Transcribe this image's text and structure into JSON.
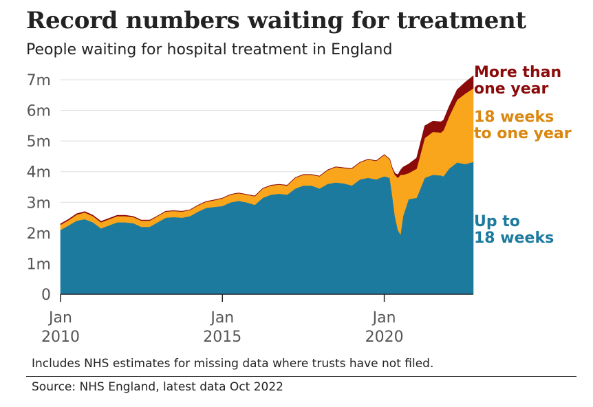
{
  "title": "Record numbers waiting for treatment",
  "subtitle": "People waiting for hospital treatment in England",
  "footnote": "Includes NHS estimates for missing data where trusts have not filed.",
  "source": "Source: NHS England, latest data Oct 2022",
  "chart_data": {
    "type": "area",
    "stacked": true,
    "grid": true,
    "x_unit": "decimal year (month start)",
    "x_range": [
      2010.0,
      2022.75
    ],
    "ylim": [
      0,
      7.5
    ],
    "y_ticks": [
      0,
      1,
      2,
      3,
      4,
      5,
      6,
      7
    ],
    "y_tick_labels": [
      "0",
      "1m",
      "2m",
      "3m",
      "4m",
      "5m",
      "6m",
      "7m"
    ],
    "x_ticks": [
      2010,
      2015,
      2020
    ],
    "x_tick_labels": [
      [
        "Jan",
        "2010"
      ],
      [
        "Jan",
        "2015"
      ],
      [
        "Jan",
        "2020"
      ]
    ],
    "series": [
      {
        "name": "Up to 18 weeks",
        "label_lines": [
          "Up to",
          "18 weeks"
        ],
        "color": "#1b7a9e",
        "label_color": "#1b7a9e",
        "points": [
          [
            2010.0,
            2.1
          ],
          [
            2010.25,
            2.25
          ],
          [
            2010.5,
            2.4
          ],
          [
            2010.75,
            2.45
          ],
          [
            2011.0,
            2.35
          ],
          [
            2011.25,
            2.15
          ],
          [
            2011.5,
            2.25
          ],
          [
            2011.75,
            2.35
          ],
          [
            2012.0,
            2.35
          ],
          [
            2012.25,
            2.32
          ],
          [
            2012.5,
            2.2
          ],
          [
            2012.75,
            2.2
          ],
          [
            2013.0,
            2.35
          ],
          [
            2013.25,
            2.5
          ],
          [
            2013.5,
            2.52
          ],
          [
            2013.75,
            2.5
          ],
          [
            2014.0,
            2.55
          ],
          [
            2014.25,
            2.7
          ],
          [
            2014.5,
            2.82
          ],
          [
            2014.75,
            2.85
          ],
          [
            2015.0,
            2.88
          ],
          [
            2015.25,
            3.0
          ],
          [
            2015.5,
            3.05
          ],
          [
            2015.75,
            3.0
          ],
          [
            2016.0,
            2.92
          ],
          [
            2016.25,
            3.15
          ],
          [
            2016.5,
            3.25
          ],
          [
            2016.75,
            3.28
          ],
          [
            2017.0,
            3.25
          ],
          [
            2017.25,
            3.45
          ],
          [
            2017.5,
            3.55
          ],
          [
            2017.75,
            3.55
          ],
          [
            2018.0,
            3.45
          ],
          [
            2018.25,
            3.6
          ],
          [
            2018.5,
            3.65
          ],
          [
            2018.75,
            3.62
          ],
          [
            2019.0,
            3.55
          ],
          [
            2019.25,
            3.75
          ],
          [
            2019.5,
            3.8
          ],
          [
            2019.75,
            3.75
          ],
          [
            2020.0,
            3.85
          ],
          [
            2020.17,
            3.8
          ],
          [
            2020.25,
            3.2
          ],
          [
            2020.33,
            2.55
          ],
          [
            2020.42,
            2.1
          ],
          [
            2020.5,
            1.95
          ],
          [
            2020.58,
            2.55
          ],
          [
            2020.75,
            3.1
          ],
          [
            2021.0,
            3.15
          ],
          [
            2021.25,
            3.8
          ],
          [
            2021.5,
            3.9
          ],
          [
            2021.75,
            3.88
          ],
          [
            2021.83,
            3.85
          ],
          [
            2022.0,
            4.1
          ],
          [
            2022.25,
            4.3
          ],
          [
            2022.5,
            4.25
          ],
          [
            2022.75,
            4.32
          ]
        ]
      },
      {
        "name": "18 weeks to one year",
        "label_lines": [
          "18 weeks",
          "to one year"
        ],
        "color": "#f9a61c",
        "label_color": "#d9870f",
        "points": [
          [
            2010.0,
            0.17
          ],
          [
            2010.25,
            0.17
          ],
          [
            2010.5,
            0.2
          ],
          [
            2010.75,
            0.22
          ],
          [
            2011.0,
            0.2
          ],
          [
            2011.25,
            0.2
          ],
          [
            2011.5,
            0.2
          ],
          [
            2011.75,
            0.2
          ],
          [
            2012.0,
            0.2
          ],
          [
            2012.25,
            0.2
          ],
          [
            2012.5,
            0.2
          ],
          [
            2012.75,
            0.2
          ],
          [
            2013.0,
            0.2
          ],
          [
            2013.25,
            0.2
          ],
          [
            2013.5,
            0.2
          ],
          [
            2013.75,
            0.2
          ],
          [
            2014.0,
            0.2
          ],
          [
            2014.25,
            0.2
          ],
          [
            2014.5,
            0.2
          ],
          [
            2014.75,
            0.22
          ],
          [
            2015.0,
            0.25
          ],
          [
            2015.25,
            0.25
          ],
          [
            2015.5,
            0.25
          ],
          [
            2015.75,
            0.25
          ],
          [
            2016.0,
            0.28
          ],
          [
            2016.25,
            0.3
          ],
          [
            2016.5,
            0.3
          ],
          [
            2016.75,
            0.3
          ],
          [
            2017.0,
            0.3
          ],
          [
            2017.25,
            0.35
          ],
          [
            2017.5,
            0.35
          ],
          [
            2017.75,
            0.35
          ],
          [
            2018.0,
            0.4
          ],
          [
            2018.25,
            0.45
          ],
          [
            2018.5,
            0.5
          ],
          [
            2018.75,
            0.5
          ],
          [
            2019.0,
            0.55
          ],
          [
            2019.25,
            0.55
          ],
          [
            2019.5,
            0.6
          ],
          [
            2019.75,
            0.6
          ],
          [
            2020.0,
            0.7
          ],
          [
            2020.17,
            0.6
          ],
          [
            2020.25,
            0.9
          ],
          [
            2020.33,
            1.35
          ],
          [
            2020.42,
            1.7
          ],
          [
            2020.5,
            1.95
          ],
          [
            2020.58,
            1.35
          ],
          [
            2020.75,
            0.85
          ],
          [
            2021.0,
            0.95
          ],
          [
            2021.25,
            1.3
          ],
          [
            2021.5,
            1.4
          ],
          [
            2021.75,
            1.4
          ],
          [
            2021.83,
            1.5
          ],
          [
            2022.0,
            1.7
          ],
          [
            2022.25,
            2.05
          ],
          [
            2022.5,
            2.3
          ],
          [
            2022.75,
            2.4
          ]
        ]
      },
      {
        "name": "More than one year",
        "label_lines": [
          "More than",
          "one year"
        ],
        "color": "#8b0a0a",
        "label_color": "#8b0a0a",
        "points": [
          [
            2010.0,
            0.03
          ],
          [
            2010.25,
            0.03
          ],
          [
            2010.5,
            0.03
          ],
          [
            2010.75,
            0.03
          ],
          [
            2011.0,
            0.03
          ],
          [
            2011.25,
            0.03
          ],
          [
            2011.5,
            0.03
          ],
          [
            2011.75,
            0.03
          ],
          [
            2012.0,
            0.03
          ],
          [
            2012.25,
            0.02
          ],
          [
            2012.5,
            0.02
          ],
          [
            2012.75,
            0.02
          ],
          [
            2013.0,
            0.01
          ],
          [
            2013.25,
            0.01
          ],
          [
            2013.5,
            0.01
          ],
          [
            2013.75,
            0.01
          ],
          [
            2014.0,
            0.01
          ],
          [
            2014.25,
            0.01
          ],
          [
            2014.5,
            0.01
          ],
          [
            2014.75,
            0.01
          ],
          [
            2015.0,
            0.01
          ],
          [
            2015.25,
            0.01
          ],
          [
            2015.5,
            0.01
          ],
          [
            2015.75,
            0.01
          ],
          [
            2016.0,
            0.01
          ],
          [
            2016.25,
            0.01
          ],
          [
            2016.5,
            0.01
          ],
          [
            2016.75,
            0.01
          ],
          [
            2017.0,
            0.01
          ],
          [
            2017.25,
            0.01
          ],
          [
            2017.5,
            0.01
          ],
          [
            2017.75,
            0.01
          ],
          [
            2018.0,
            0.01
          ],
          [
            2018.25,
            0.01
          ],
          [
            2018.5,
            0.01
          ],
          [
            2018.75,
            0.01
          ],
          [
            2019.0,
            0.01
          ],
          [
            2019.25,
            0.01
          ],
          [
            2019.5,
            0.01
          ],
          [
            2019.75,
            0.01
          ],
          [
            2020.0,
            0.01
          ],
          [
            2020.17,
            0.01
          ],
          [
            2020.25,
            0.02
          ],
          [
            2020.33,
            0.05
          ],
          [
            2020.42,
            0.1
          ],
          [
            2020.5,
            0.15
          ],
          [
            2020.58,
            0.25
          ],
          [
            2020.75,
            0.3
          ],
          [
            2021.0,
            0.35
          ],
          [
            2021.25,
            0.4
          ],
          [
            2021.5,
            0.35
          ],
          [
            2021.75,
            0.35
          ],
          [
            2021.83,
            0.33
          ],
          [
            2022.0,
            0.32
          ],
          [
            2022.25,
            0.33
          ],
          [
            2022.5,
            0.37
          ],
          [
            2022.75,
            0.41
          ]
        ]
      }
    ]
  }
}
